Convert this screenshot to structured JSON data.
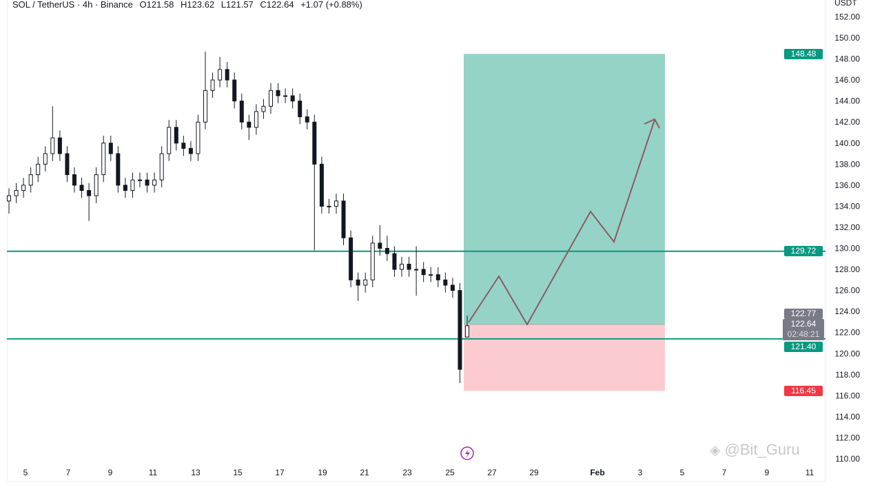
{
  "legend": {
    "symbol": "SOL / TetherUS · 4h · Binance",
    "open": "O121.58",
    "high": "H123.62",
    "low": "L121.57",
    "close": "C122.64",
    "change": "+1.07 (+0.88%)"
  },
  "axis_unit": "USDT",
  "price_tags": {
    "target": "148.48",
    "resistance": "129.72",
    "entry": "122.77",
    "last": "122.64",
    "countdown": "02:48:21",
    "support": "121.40",
    "stop": "116.45"
  },
  "watermark": "@Bit_Guru",
  "colors": {
    "up": "#ffffff",
    "down": "#131722",
    "target_zone": "#95d3c6",
    "stop_zone": "#fccbcf",
    "level_line": "#089981",
    "stop_tag": "#f23645",
    "last_tag": "#787b86",
    "projection": "#8c5a63"
  },
  "chart_data": {
    "type": "candlestick",
    "title": "SOL / TetherUS · 4h · Binance",
    "ylim": [
      109,
      153
    ],
    "y_ticks": [
      "110.00",
      "112.00",
      "114.00",
      "116.00",
      "118.00",
      "120.00",
      "122.00",
      "124.00",
      "126.00",
      "128.00",
      "130.00",
      "132.00",
      "134.00",
      "136.00",
      "138.00",
      "140.00",
      "142.00",
      "144.00",
      "146.00",
      "148.00",
      "150.00",
      "152.00"
    ],
    "x_ticks": [
      "5",
      "7",
      "9",
      "11",
      "13",
      "15",
      "17",
      "19",
      "21",
      "23",
      "25",
      "27",
      "29",
      "Feb",
      "3",
      "5",
      "7",
      "9",
      "11"
    ],
    "open": [
      134.5,
      135,
      135.5,
      136,
      137,
      138,
      139,
      140.5,
      139,
      137,
      136,
      135.5,
      135,
      137,
      140,
      139,
      136,
      135.5,
      136.5,
      136.5,
      136,
      136.5,
      139,
      141.5,
      140,
      139.5,
      139,
      142,
      145,
      146,
      147,
      146,
      144,
      142,
      141.5,
      143,
      143.5,
      145,
      144.5,
      144.5,
      144,
      142.5,
      142,
      138,
      134,
      134,
      134.5,
      131,
      127,
      126.5,
      127,
      130.5,
      130,
      129.5,
      128,
      128.5,
      128,
      128,
      127.5,
      127.5,
      127,
      126.5,
      126,
      121.58
    ],
    "high": [
      135.7,
      136.2,
      136.7,
      137.7,
      138.7,
      139.7,
      143.5,
      141.2,
      139.7,
      137.7,
      136.7,
      136.2,
      137.7,
      140.7,
      140.7,
      139.7,
      136.7,
      137.2,
      137.2,
      137.2,
      137.2,
      139.7,
      142.2,
      142.2,
      140.7,
      140.2,
      142.7,
      148.7,
      146.7,
      148.2,
      147.7,
      146.7,
      144.7,
      142.7,
      143.7,
      144.2,
      145.7,
      145.7,
      145.2,
      145.2,
      144.7,
      143.2,
      142.7,
      138.7,
      134.7,
      135.2,
      135.2,
      131.7,
      127.7,
      127.7,
      131.2,
      132.2,
      131.2,
      130.2,
      129.2,
      129.2,
      130.2,
      128.7,
      128.2,
      128.2,
      127.7,
      127.2,
      126.7,
      123.62
    ],
    "low": [
      133.3,
      134.3,
      134.8,
      135.3,
      136.3,
      137.3,
      138.3,
      138.3,
      136.3,
      135.3,
      134.8,
      132.6,
      134.3,
      136.3,
      138.3,
      135.3,
      134.8,
      134.8,
      135.8,
      135.3,
      135.3,
      135.8,
      138.3,
      139.3,
      138.8,
      138.3,
      138.3,
      141.3,
      144.3,
      145.3,
      145.3,
      143.3,
      141.3,
      140.3,
      140.8,
      142.3,
      142.8,
      143.8,
      143.8,
      143.3,
      141.8,
      141.3,
      129.8,
      133.3,
      133.3,
      133.3,
      130.3,
      126.3,
      125.0,
      125.8,
      126.3,
      129.3,
      128.8,
      127.3,
      127.3,
      127.3,
      125.5,
      126.8,
      126.8,
      126.3,
      125.8,
      125.3,
      117.2,
      121.57
    ],
    "close": [
      135,
      135.5,
      136,
      137,
      138,
      139,
      140.5,
      139,
      137,
      136,
      135.5,
      135,
      137,
      140,
      139,
      136,
      135.5,
      136.5,
      136.5,
      136,
      136.5,
      139,
      141.5,
      140,
      139.5,
      139,
      142,
      145,
      146,
      147,
      146,
      144,
      142,
      141.5,
      143,
      143.5,
      145,
      144.5,
      144.5,
      144,
      142.5,
      142,
      138,
      134,
      134,
      134.5,
      131,
      127,
      126.5,
      127,
      130.5,
      130,
      129.5,
      128,
      128.5,
      128,
      128,
      127.5,
      127.5,
      127,
      126.5,
      126,
      118.5,
      122.64
    ],
    "horizontal_levels": [
      129.72,
      121.4
    ],
    "long_position": {
      "entry": 122.77,
      "target": 148.48,
      "stop": 116.45
    }
  }
}
